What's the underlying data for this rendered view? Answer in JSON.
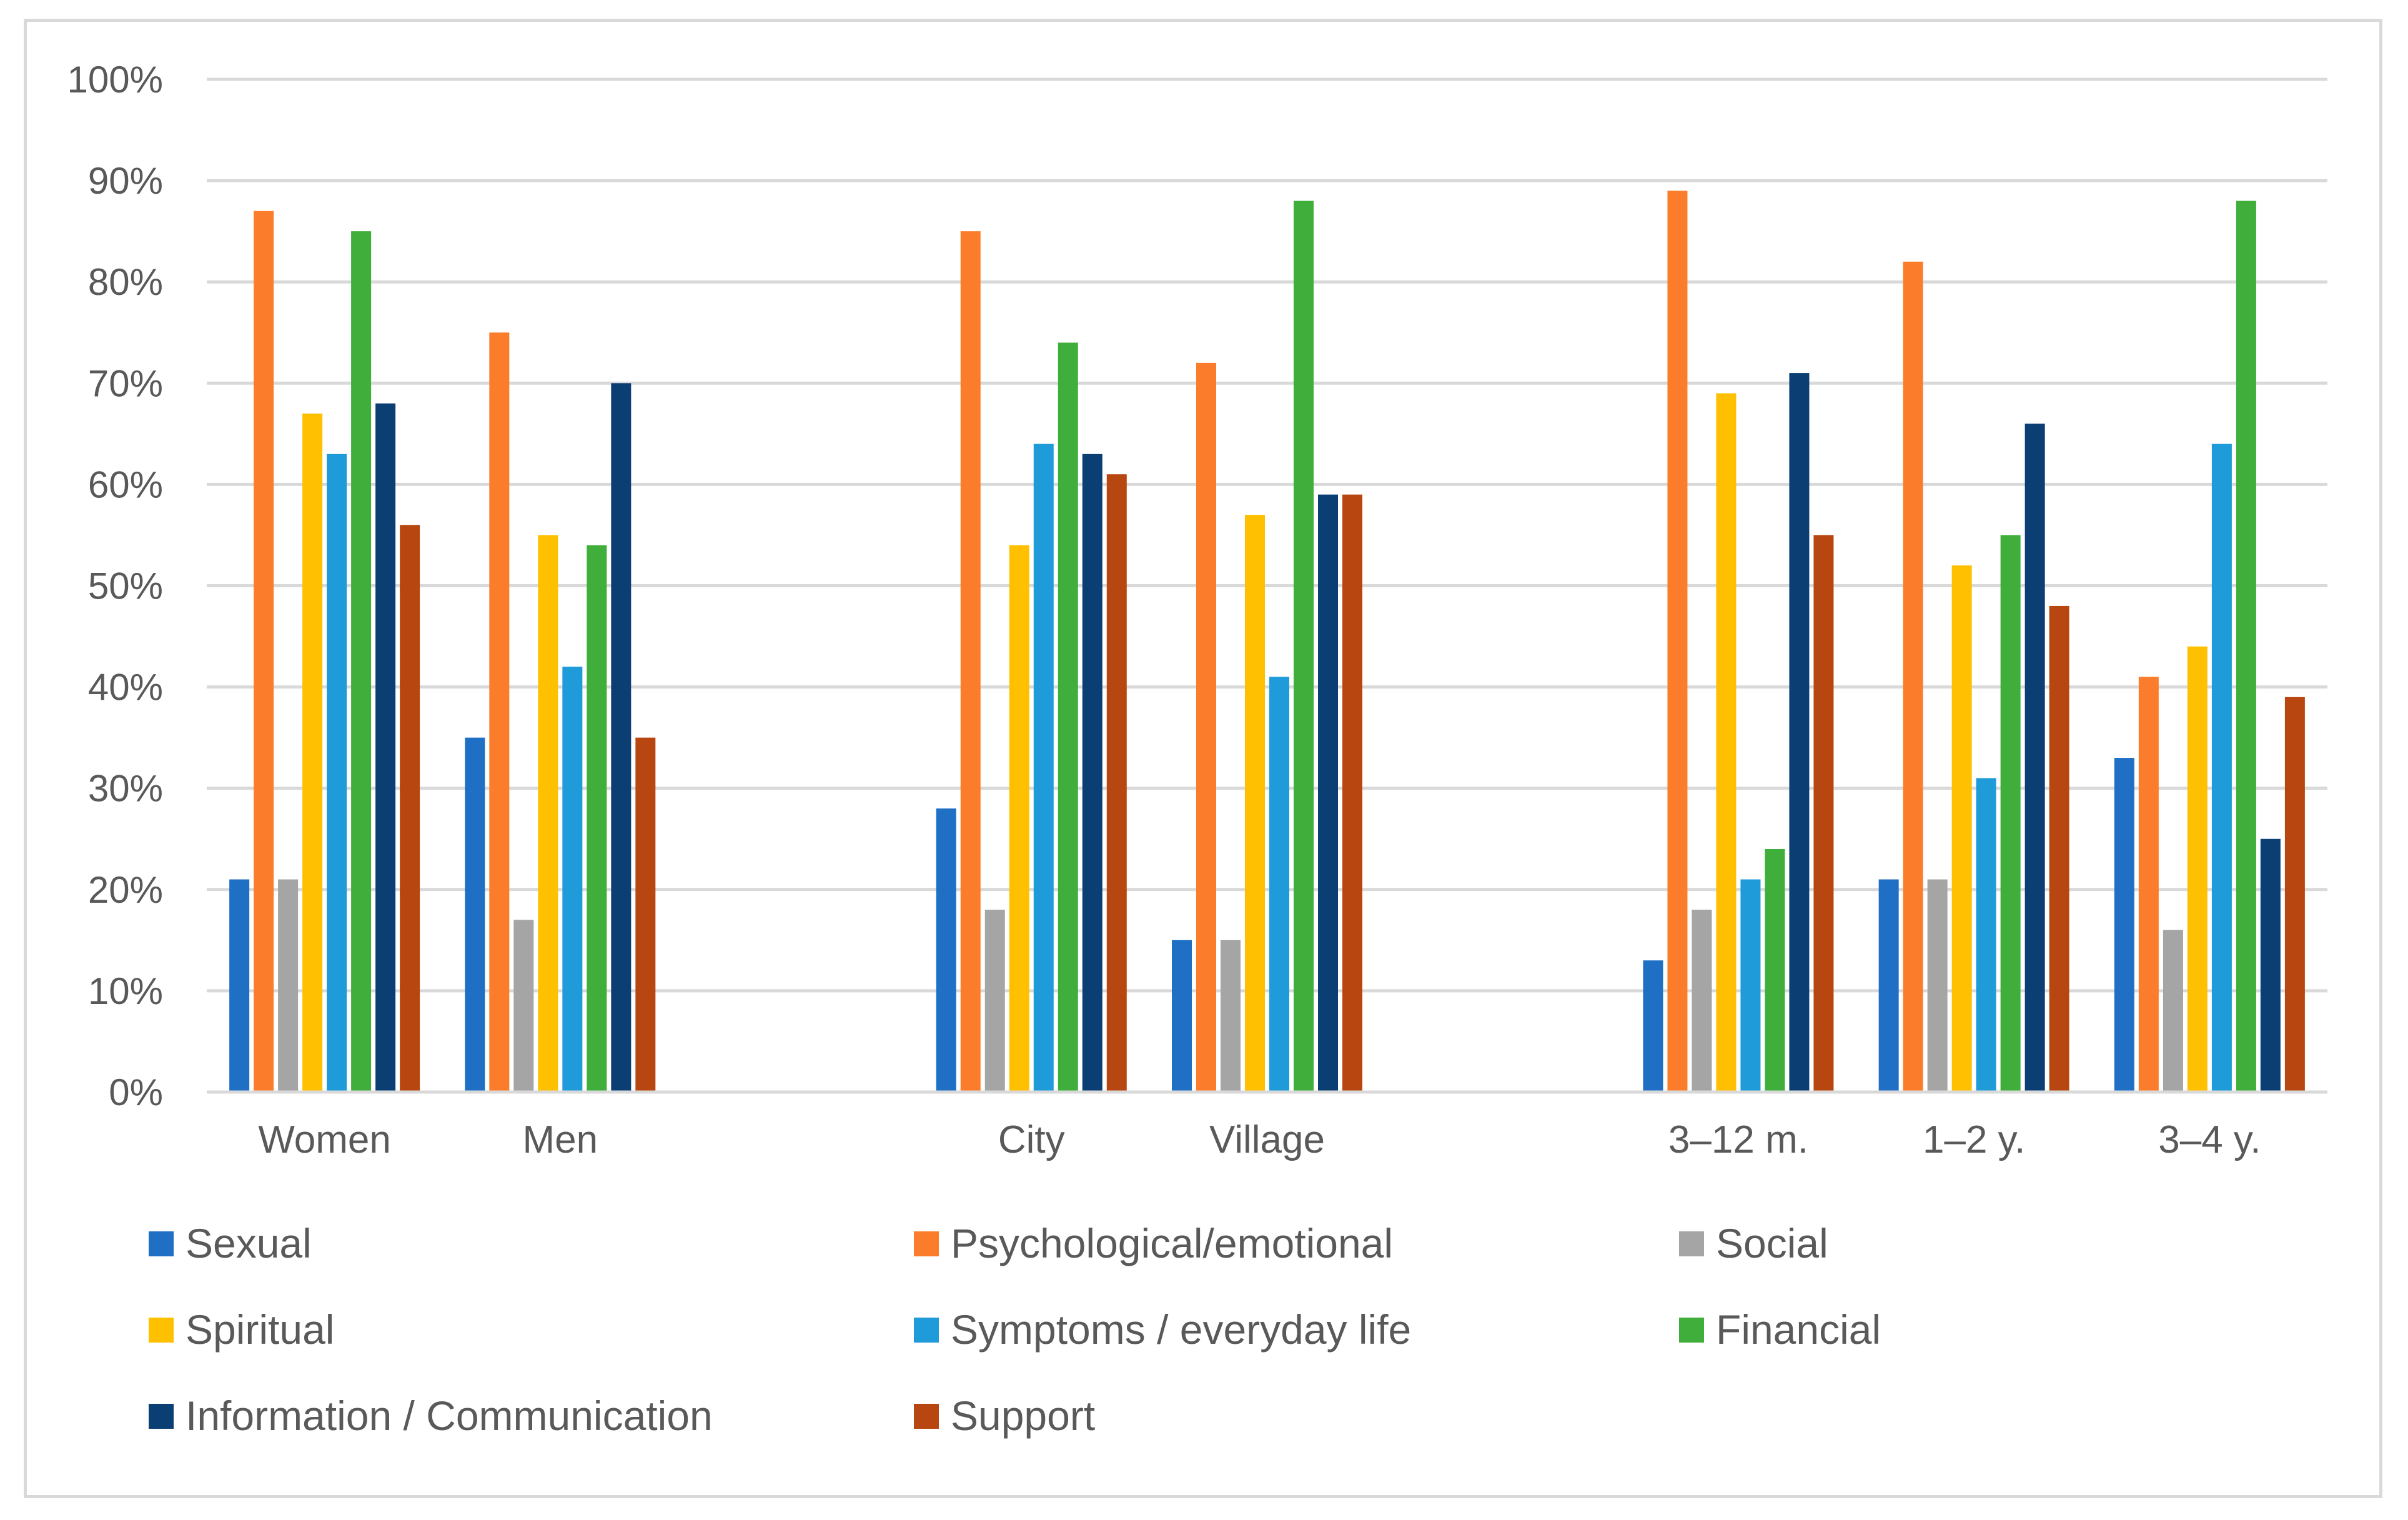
{
  "chart_data": {
    "type": "bar",
    "title": "",
    "xlabel": "",
    "ylabel": "",
    "ylim": [
      0,
      100
    ],
    "y_ticks": [
      "0%",
      "10%",
      "20%",
      "30%",
      "40%",
      "50%",
      "60%",
      "70%",
      "80%",
      "90%",
      "100%"
    ],
    "grid": true,
    "legend_position": "bottom",
    "categories": [
      "Women",
      "Men",
      "",
      "City",
      "Village",
      "",
      "3–12 m.",
      "1–2 y.",
      "3–4 y."
    ],
    "series": [
      {
        "name": "Sexual",
        "color": "#1f6fc5",
        "values": [
          21,
          35,
          null,
          28,
          15,
          null,
          13,
          21,
          33
        ]
      },
      {
        "name": "Psychological/emotional",
        "color": "#fb7d2c",
        "values": [
          87,
          75,
          null,
          85,
          72,
          null,
          89,
          82,
          41
        ]
      },
      {
        "name": "Social",
        "color": "#a5a5a5",
        "values": [
          21,
          17,
          null,
          18,
          15,
          null,
          18,
          21,
          16
        ]
      },
      {
        "name": "Spiritual",
        "color": "#fec000",
        "values": [
          67,
          55,
          null,
          54,
          57,
          null,
          69,
          52,
          44
        ]
      },
      {
        "name": "Symptoms / everyday life",
        "color": "#1f9bd9",
        "values": [
          63,
          42,
          null,
          64,
          41,
          null,
          21,
          31,
          64
        ]
      },
      {
        "name": "Financial",
        "color": "#3fae3a",
        "values": [
          85,
          54,
          null,
          74,
          88,
          null,
          24,
          55,
          88
        ]
      },
      {
        "name": "Information / Communication",
        "color": "#0b3f74",
        "values": [
          68,
          70,
          null,
          63,
          59,
          null,
          71,
          66,
          25
        ]
      },
      {
        "name": "Support",
        "color": "#b84610",
        "values": [
          56,
          35,
          null,
          61,
          59,
          null,
          55,
          48,
          39
        ]
      }
    ]
  }
}
